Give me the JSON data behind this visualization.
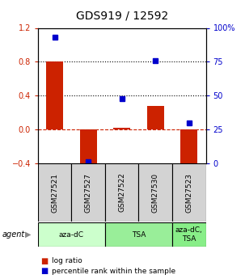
{
  "title": "GDS919 / 12592",
  "samples": [
    "GSM27521",
    "GSM27527",
    "GSM27522",
    "GSM27530",
    "GSM27523"
  ],
  "log_ratios": [
    0.8,
    -0.45,
    0.02,
    0.28,
    -0.45
  ],
  "percentile_ranks": [
    93,
    1,
    48,
    76,
    30
  ],
  "bar_color": "#cc2200",
  "dot_color": "#0000cc",
  "left_ylim": [
    -0.4,
    1.2
  ],
  "right_ylim": [
    0,
    100
  ],
  "left_yticks": [
    -0.4,
    0.0,
    0.4,
    0.8,
    1.2
  ],
  "right_yticks": [
    0,
    25,
    50,
    75,
    100
  ],
  "right_yticklabels": [
    "0",
    "25",
    "50",
    "75",
    "100%"
  ],
  "agent_groups": [
    {
      "label": "aza-dC",
      "start": 0,
      "end": 2,
      "color": "#ccffcc"
    },
    {
      "label": "TSA",
      "start": 2,
      "end": 4,
      "color": "#99ee99"
    },
    {
      "label": "aza-dC,\nTSA",
      "start": 4,
      "end": 5,
      "color": "#88ee88"
    }
  ],
  "agent_label": "agent",
  "legend_items": [
    {
      "color": "#cc2200",
      "label": "log ratio"
    },
    {
      "color": "#0000cc",
      "label": "percentile rank within the sample"
    }
  ],
  "title_fontsize": 10,
  "tick_fontsize": 7,
  "bar_width": 0.5
}
